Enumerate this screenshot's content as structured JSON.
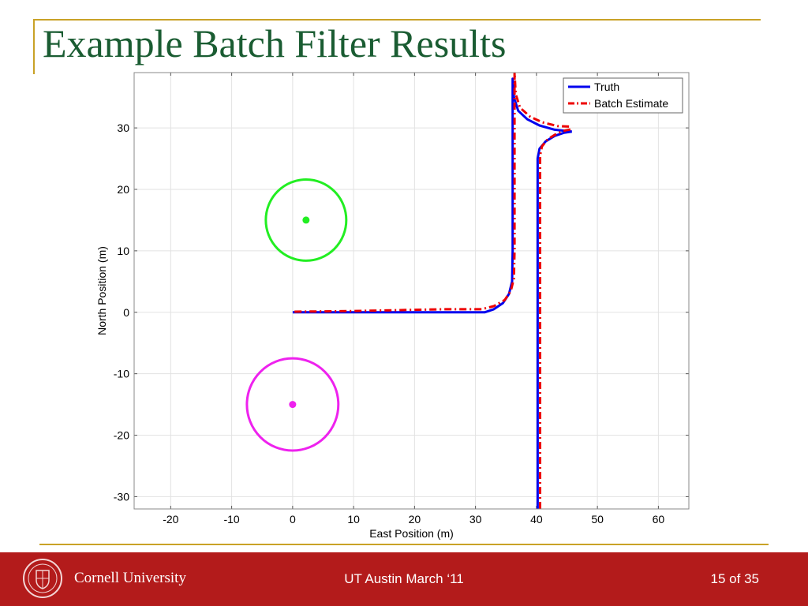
{
  "slide": {
    "title": "Example Batch Filter Results"
  },
  "footer": {
    "university": "Cornell University",
    "center_text": "UT Austin March ‘11",
    "page_label": "15 of 35"
  },
  "colors": {
    "title_green": "#1a5c32",
    "rule_gold": "#c9a227",
    "footer_red": "#b31b1b",
    "truth_blue": "#0000ee",
    "estimate_red": "#ee0000",
    "circle_green": "#22ee22",
    "circle_magenta": "#ee22ee"
  },
  "chart_data": {
    "type": "line",
    "xlabel": "East Position (m)",
    "ylabel": "North Position (m)",
    "xlim": [
      -26,
      65
    ],
    "ylim": [
      -32,
      39
    ],
    "xticks": [
      -20,
      -10,
      0,
      10,
      20,
      30,
      40,
      50,
      60
    ],
    "yticks": [
      -30,
      -20,
      -10,
      0,
      10,
      20,
      30
    ],
    "grid": true,
    "legend_position": "top-right",
    "series": [
      {
        "name": "Truth",
        "style": "solid",
        "color": "#0000ee",
        "paths": [
          {
            "x": [
              0,
              31.5,
              33,
              34.5,
              35.5,
              36,
              36.1,
              36.1,
              36.3,
              37,
              38.5,
              40.5,
              43,
              45.8
            ],
            "y": [
              0,
              0,
              0.5,
              1.5,
              3,
              5,
              10,
              38,
              35,
              32.8,
              31.4,
              30.4,
              29.7,
              29.4
            ]
          },
          {
            "x": [
              40.2,
              40.2,
              40.5,
              41.5,
              43,
              44.5,
              45.8
            ],
            "y": [
              -32,
              25,
              26.6,
              27.8,
              28.7,
              29.2,
              29.4
            ]
          }
        ]
      },
      {
        "name": "Batch Estimate",
        "style": "dashdot",
        "color": "#ee0000",
        "paths": [
          {
            "x": [
              0.3,
              10,
              20,
              25,
              31,
              33,
              34.8,
              35.8,
              36.3,
              36.4,
              36.4,
              36.6,
              37.3,
              39,
              41,
              43.5,
              45.8
            ],
            "y": [
              0.1,
              0.2,
              0.4,
              0.5,
              0.5,
              1,
              2,
              3.5,
              5.5,
              10,
              39,
              35.5,
              33.3,
              31.8,
              30.9,
              30.3,
              30.2
            ]
          },
          {
            "x": [
              40.6,
              40.6,
              40.9,
              41.9,
              43.4,
              44.8,
              45.8
            ],
            "y": [
              -32,
              25.5,
              27,
              28.2,
              29.1,
              29.6,
              29.8
            ]
          }
        ]
      }
    ],
    "markers": [
      {
        "type": "circle",
        "cx": 2.2,
        "cy": 15,
        "r": 6.6,
        "color": "#22ee22"
      },
      {
        "type": "dot",
        "x": 2.2,
        "y": 15,
        "color": "#22ee22"
      },
      {
        "type": "circle",
        "cx": 0,
        "cy": -15,
        "r": 7.5,
        "color": "#ee22ee"
      },
      {
        "type": "dot",
        "x": 0,
        "y": -15,
        "color": "#ee22ee"
      }
    ]
  }
}
